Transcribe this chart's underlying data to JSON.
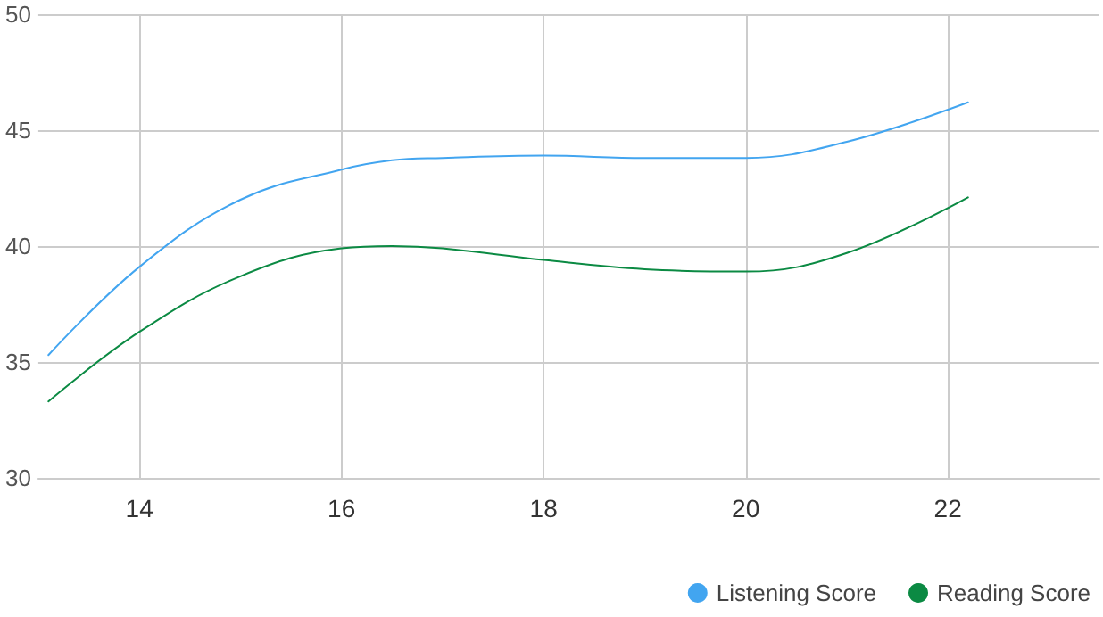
{
  "chart_data": {
    "type": "line",
    "x": [
      13.1,
      14,
      15,
      16,
      16.5,
      17,
      18,
      19,
      20,
      21,
      22.2
    ],
    "series": [
      {
        "name": "Listening Score",
        "color": "#42a5f0",
        "values": [
          35.3,
          39.1,
          42.0,
          43.3,
          43.7,
          43.8,
          43.9,
          43.8,
          43.8,
          44.5,
          46.2
        ]
      },
      {
        "name": "Reading Score",
        "color": "#0b8a43",
        "values": [
          33.3,
          36.3,
          38.7,
          39.9,
          40.0,
          39.9,
          39.4,
          39.0,
          38.9,
          39.7,
          42.1
        ]
      }
    ],
    "xlim": [
      13,
      23.5
    ],
    "xticks": [
      14,
      16,
      18,
      20,
      22
    ],
    "ylim": [
      30,
      50
    ],
    "yticks": [
      30,
      35,
      40,
      45,
      50
    ],
    "grid": true,
    "legend": "bottom right",
    "marker": "none",
    "line_style": "solid"
  }
}
